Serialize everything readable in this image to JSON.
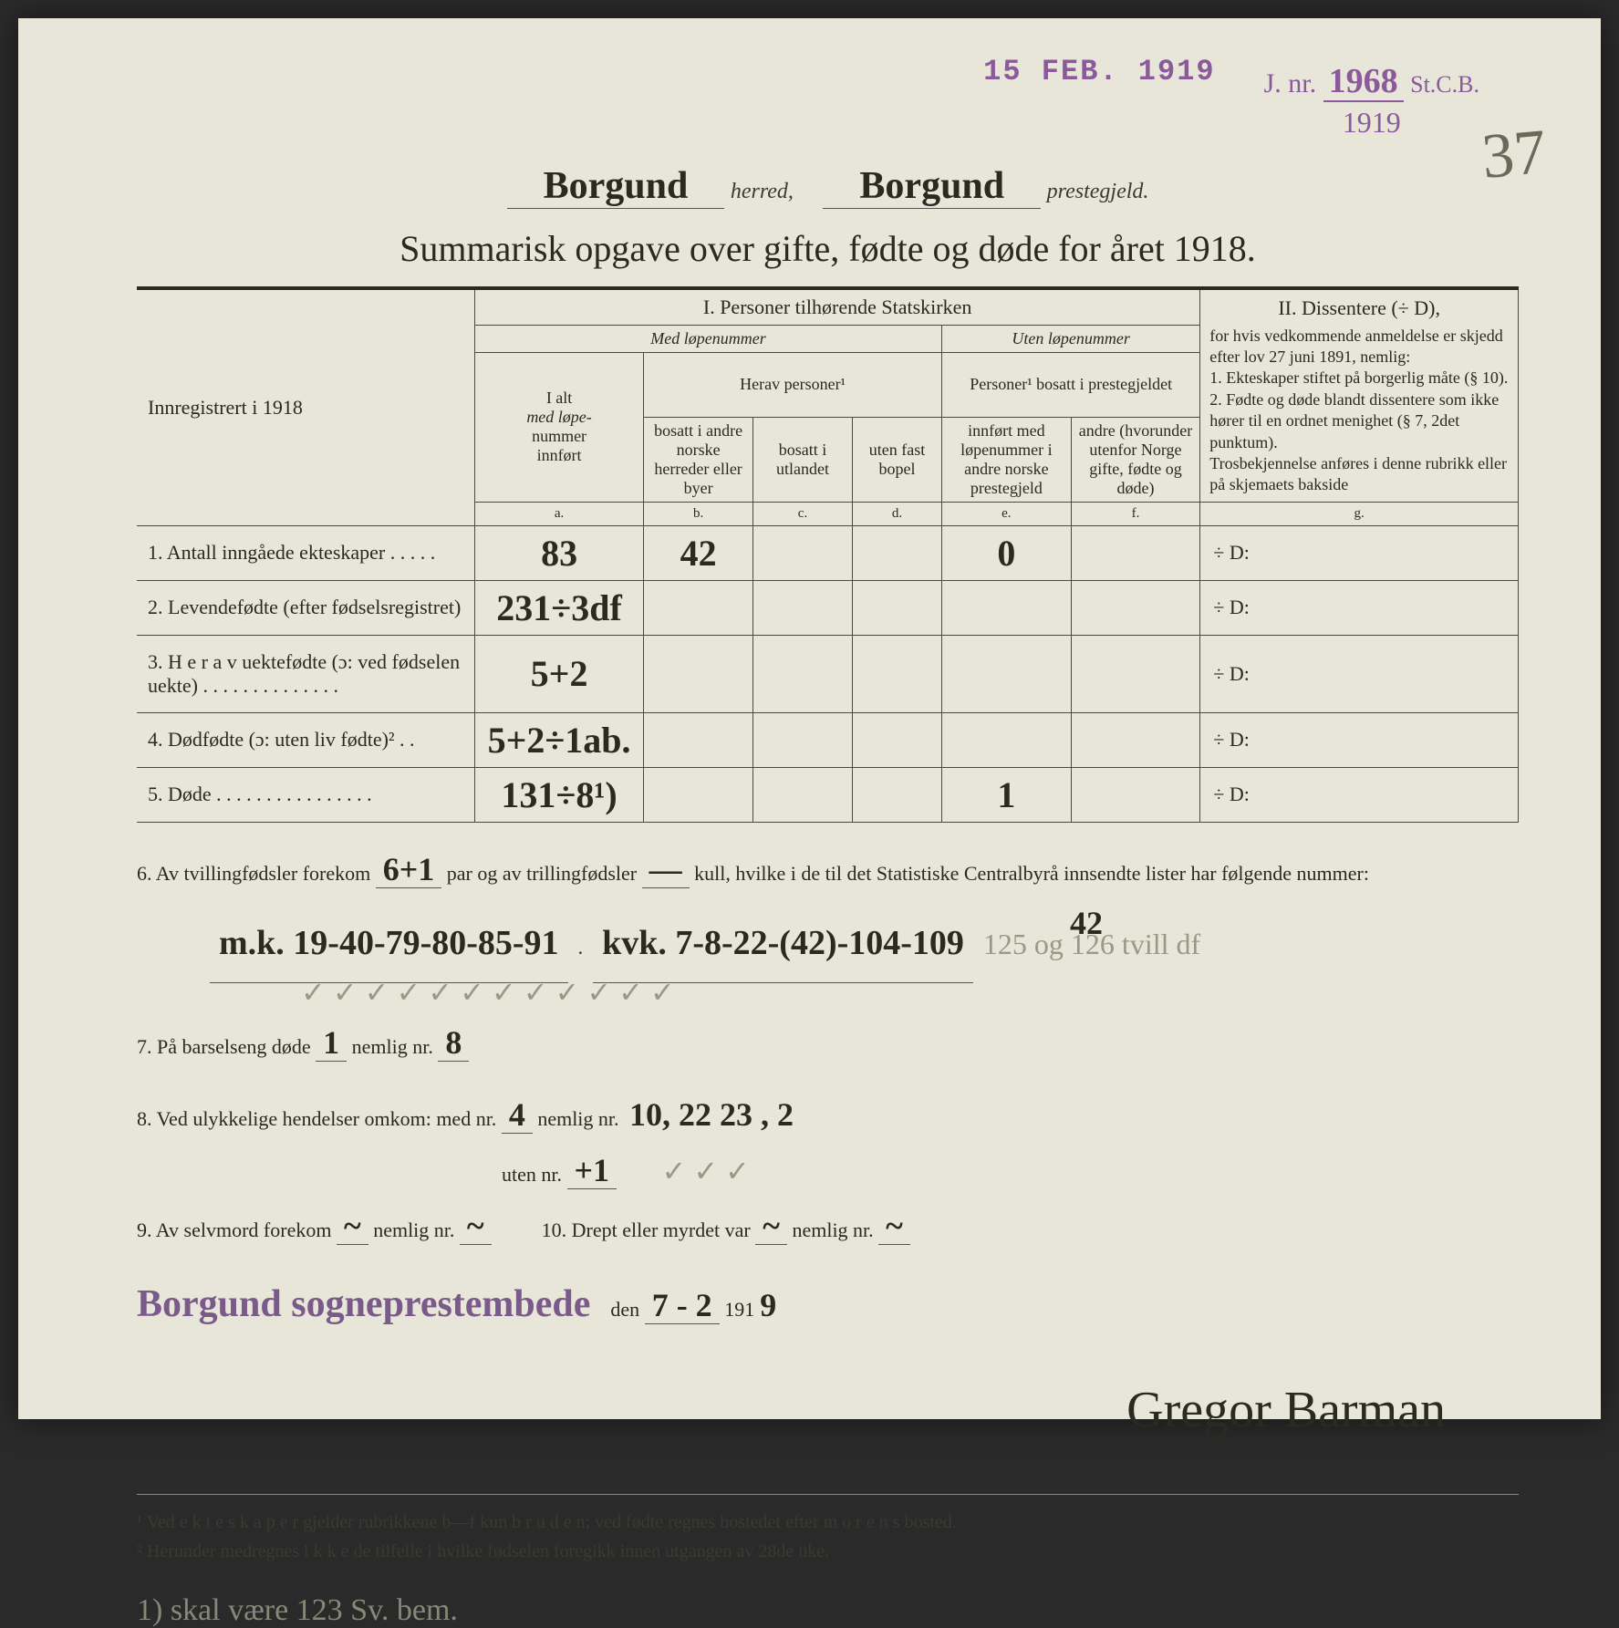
{
  "stamps": {
    "date_stamp": "15 FEB. 1919",
    "jnr_label": "J. nr.",
    "jnr_number": "1968",
    "jnr_suffix": "St.C.B.",
    "jnr_year": "1919"
  },
  "page_number": "37",
  "header": {
    "herred_value": "Borgund",
    "herred_label": "herred,",
    "prestegjeld_value": "Borgund",
    "prestegjeld_label": "prestegjeld."
  },
  "title": "Summarisk opgave over gifte, fødte og døde for året 1918.",
  "table": {
    "left_header": "Innregistrert i 1918",
    "section1": "I.  Personer tilhørende Statskirken",
    "section2_title": "II.  Dissentere (÷ D),",
    "section2_body": "for hvis vedkommende anmeldelse er skjedd efter lov 27 juni 1891, nemlig:\n1. Ekteskaper stiftet på borgerlig måte (§ 10).\n2. Fødte og døde blandt dissentere som ikke hører til en ordnet menighet (§ 7, 2det punktum).\nTrosbekjennelse anføres i denne rubrikk eller på skjemaets bakside",
    "med_lopenummer": "Med løpenummer",
    "uten_lopenummer": "Uten løpenummer",
    "col_a_1": "I alt",
    "col_a_2": "med løpe-",
    "col_a_3": "nummer",
    "col_a_4": "innført",
    "herav_personer": "Herav personer¹",
    "col_b": "bosatt i andre norske herreder eller byer",
    "col_c": "bosatt i utlandet",
    "col_d": "uten fast bopel",
    "personer_bosatt": "Personer¹ bosatt i prestegjeldet",
    "col_e": "innført med løpenummer i andre norske prestegjeld",
    "col_f": "andre (hvorunder utenfor Norge gifte, fødte og døde)",
    "sub_a": "a.",
    "sub_b": "b.",
    "sub_c": "c.",
    "sub_d": "d.",
    "sub_e": "e.",
    "sub_f": "f.",
    "sub_g": "g.",
    "rows": [
      {
        "label": "1. Antall inngåede ekteskaper . . . . .",
        "a": "83",
        "b": "42",
        "c": "",
        "d": "",
        "e": "0",
        "f": "",
        "g": "÷ D:"
      },
      {
        "label": "2. Levendefødte (efter fødselsregistret)",
        "a": "231÷3df",
        "b": "",
        "c": "",
        "d": "",
        "e": "",
        "f": "",
        "g": "÷ D:"
      },
      {
        "label": "3. H e r a v uektefødte (ɔ: ved fødselen uekte) . . . . . . . . . . . . . .",
        "a": "5+2",
        "b": "",
        "c": "",
        "d": "",
        "e": "",
        "f": "",
        "g": "÷ D:"
      },
      {
        "label": "4. Dødfødte (ɔ: uten liv fødte)² . .",
        "a": "5+2÷1ab.",
        "b": "",
        "c": "",
        "d": "",
        "e": "",
        "f": "",
        "g": "÷ D:"
      },
      {
        "label": "5. Døde . . . . . . . . . . . . . . . .",
        "a": "131÷8¹)",
        "b": "",
        "c": "",
        "d": "",
        "e": "1",
        "f": "",
        "g": "÷ D:"
      }
    ]
  },
  "below": {
    "line6_pre": "6. Av tvillingfødsler forekom",
    "line6_twin": "6+1",
    "line6_mid": "par og av trillingfødsler",
    "line6_trip": "—",
    "line6_post": "kull, hvilke i de til det Statistiske Centralbyrå innsendte lister har følgende nummer:",
    "line6_numbers_mk": "m.k.  19-40-79-80-85-91",
    "line6_numbers_kvk": "kvk.  7-8-22-(42)-104-109",
    "line6_pencil": "125 og 126 tvill df",
    "line6_annotation": "42",
    "checkmarks": "✓  ✓  ✓  ✓  ✓  ✓        ✓  ✓  ✓   ✓   ✓   ✓",
    "line7_pre": "7. På barselseng døde",
    "line7_count": "1",
    "line7_mid": "nemlig nr.",
    "line7_nr": "8",
    "line8_pre": "8. Ved ulykkelige hendelser omkom:  med nr.",
    "line8_med": "4",
    "line8_mid": "nemlig nr.",
    "line8_nrs": "10, 22  23 , 2",
    "line8_uten_label": "uten nr.",
    "line8_uten": "+1",
    "line8_checks": "✓   ✓   ✓",
    "line9_pre": "9. Av selvmord forekom",
    "line9_count": "~",
    "line9_mid": "nemlig nr.",
    "line9_nr": "~",
    "line10_pre": "10.  Drept eller myrdet var",
    "line10_count": "~",
    "line10_mid": "nemlig nr.",
    "line10_nr": "~",
    "office": "Borgund sogneprestembede",
    "den_label": "den",
    "date_day": "7 - 2",
    "date_year_prefix": "191",
    "date_year": "9",
    "signature": "Gregor Barman"
  },
  "footnotes": {
    "fn1": "¹  Ved e k t e s k a p e r gjelder rubrikkene b—f kun b r u d e n; ved fødte regnes bostedet efter m o r e n s bosted.",
    "fn2": "²  Herunder medregnes i k k e de tilfelle i hvilke fødselen foregikk innen utgangen av 28de uke."
  },
  "pencil_note": "1) skal være 123 Sv. bem."
}
